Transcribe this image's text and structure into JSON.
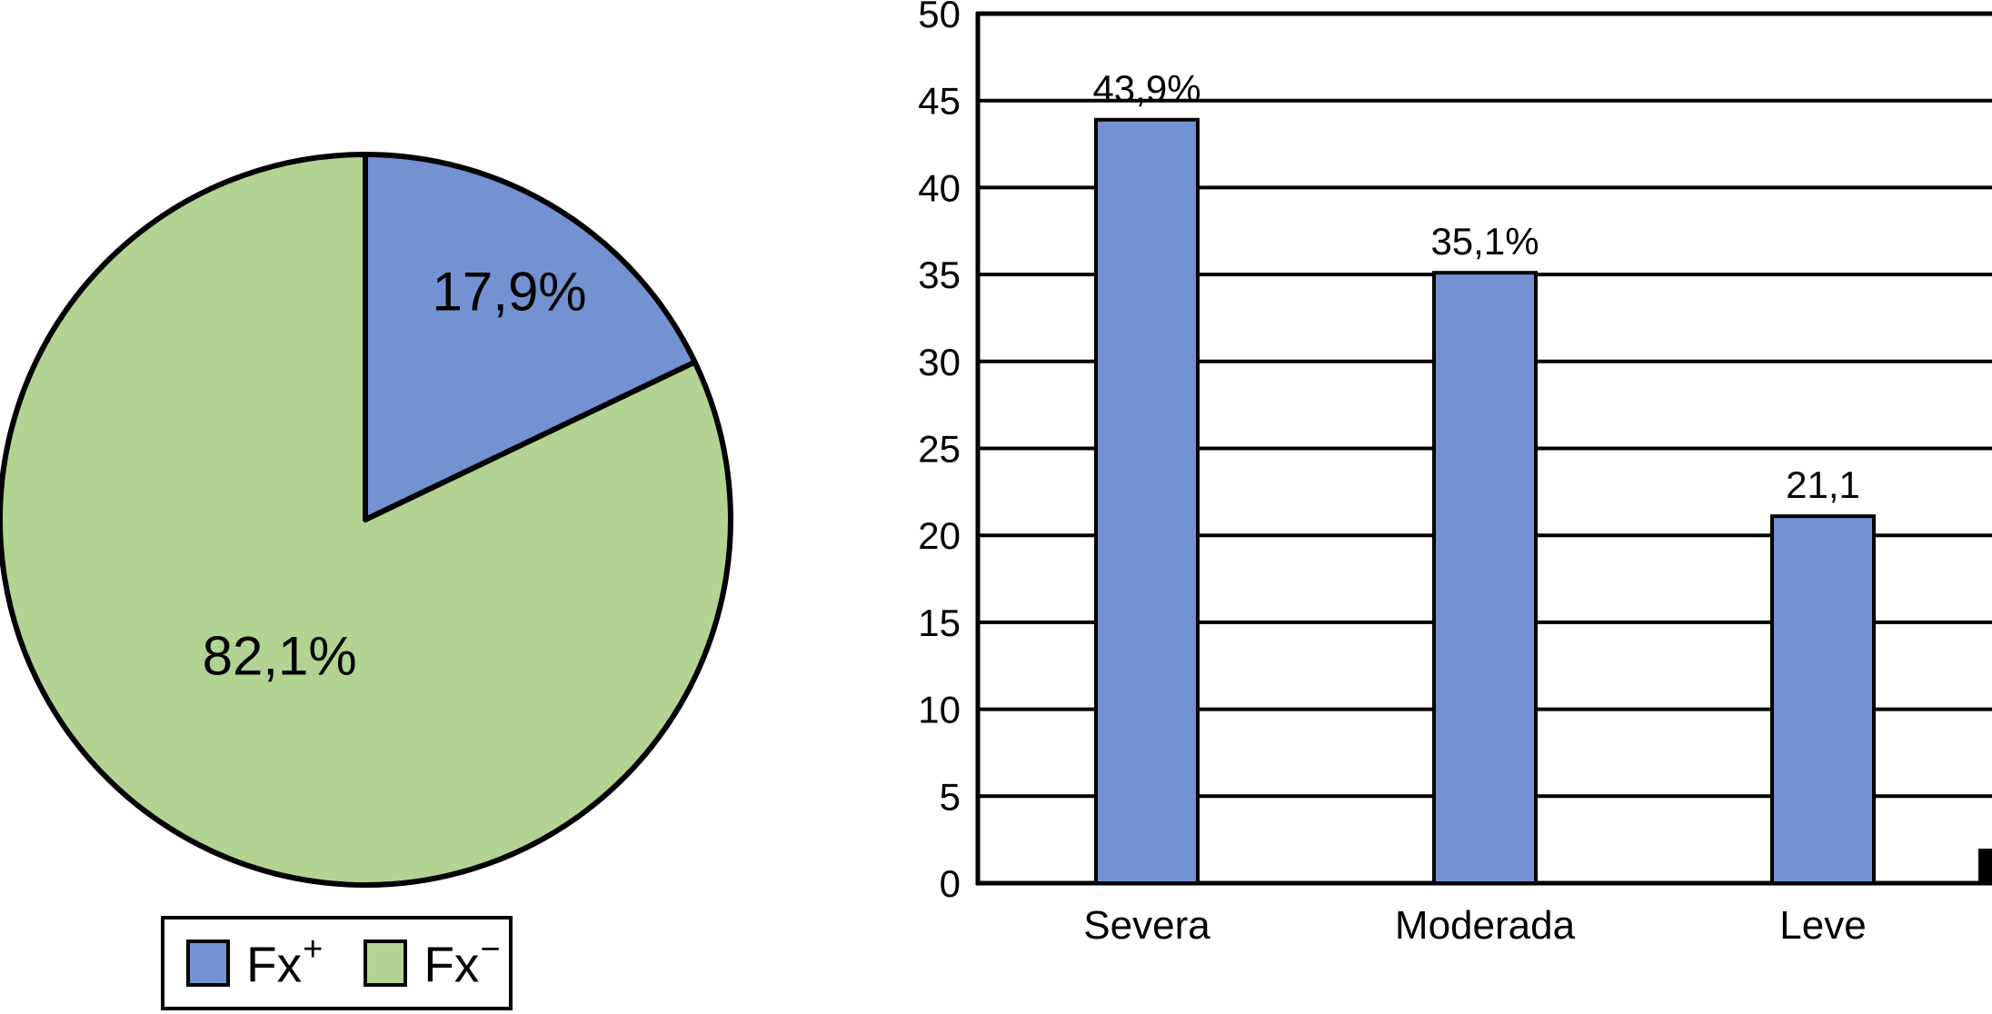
{
  "colors": {
    "blue": "#7392d2",
    "green": "#b3d392",
    "outline": "#000000",
    "text": "#000000",
    "background": "#ffffff"
  },
  "chart_data": [
    {
      "type": "pie",
      "title": "",
      "slices": [
        {
          "label": "Fx+",
          "value": 17.9,
          "display_value": "17,9%",
          "color_key": "blue"
        },
        {
          "label": "Fx−",
          "value": 82.1,
          "display_value": "82,1%",
          "color_key": "green"
        }
      ],
      "start_angle_deg": -90,
      "direction": "clockwise",
      "legend_position": "bottom",
      "legend": [
        {
          "base": "Fx",
          "sup": "+",
          "color_key": "blue"
        },
        {
          "base": "Fx",
          "sup": "−",
          "color_key": "green"
        }
      ]
    },
    {
      "type": "bar",
      "title": "",
      "xlabel": "",
      "ylabel": "",
      "categories": [
        "Severa",
        "Moderada",
        "Leve"
      ],
      "values": [
        43.9,
        35.1,
        21.1
      ],
      "value_labels": [
        "43,9%",
        "35,1%",
        "21,1"
      ],
      "ylim": [
        0,
        50
      ],
      "ytick_step": 5,
      "ytick_labels": [
        "0",
        "5",
        "10",
        "15",
        "20",
        "25",
        "30",
        "35",
        "40",
        "45",
        "50"
      ],
      "grid": "horizontal",
      "bar_color_key": "blue",
      "legend_position": "none"
    }
  ]
}
